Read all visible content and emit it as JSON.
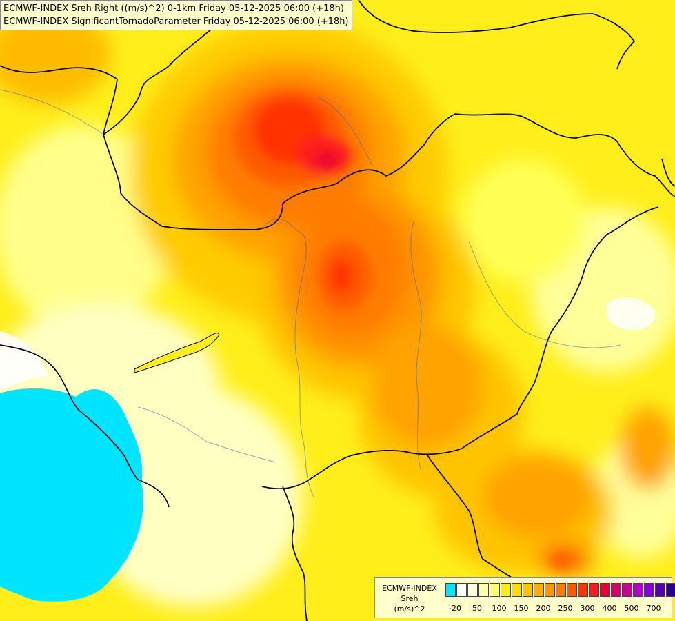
{
  "title_lines": [
    "ECMWF-INDEX Sreh Right ((m/s)^2) 0-1km Friday 05-12-2025 06:00 (+18h)",
    "ECMWF-INDEX SignificantTornadoParameter Friday 05-12-2025 06:00 (+18h)"
  ],
  "legend": {
    "title": [
      "ECMWF-INDEX",
      "Sreh",
      "(m/s)^2"
    ],
    "colors": [
      "#00e5ff",
      "#ffffff",
      "#ffffdd",
      "#ffffa8",
      "#ffff66",
      "#ffee00",
      "#ffdd00",
      "#ffc400",
      "#ffae00",
      "#ff9600",
      "#ff7c00",
      "#ff5a00",
      "#ff3300",
      "#ff1a1a",
      "#e60033",
      "#d6006b",
      "#cc0099",
      "#b300cc",
      "#8800d9",
      "#5500b3",
      "#2a008f",
      "#000080"
    ],
    "tick_labels": [
      "-20",
      "50",
      "100",
      "150",
      "200",
      "250",
      "300",
      "400",
      "500",
      "700"
    ]
  }
}
